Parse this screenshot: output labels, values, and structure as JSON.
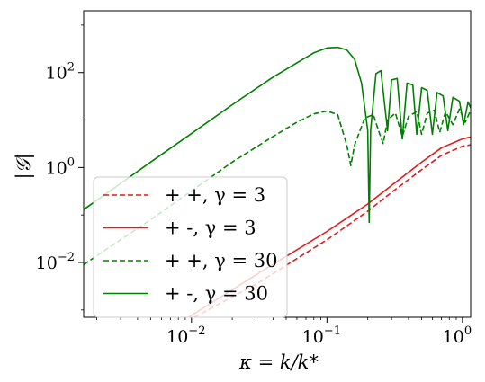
{
  "chart_data": {
    "type": "line",
    "title": "",
    "xlabel": "κ = k/k*",
    "ylabel": "|𝒢|",
    "xscale": "log",
    "yscale": "log",
    "xlim": [
      0.0016,
      1.15
    ],
    "ylim": [
      0.0007,
      2000
    ],
    "grid": false,
    "legend_location": "lower-left",
    "x_ticks": [
      {
        "value": 0.01,
        "base": "10",
        "exp": "−2"
      },
      {
        "value": 0.1,
        "base": "10",
        "exp": "−1"
      },
      {
        "value": 1,
        "base": "10",
        "exp": "0"
      }
    ],
    "y_ticks": [
      {
        "value": 0.01,
        "base": "10",
        "exp": "−2"
      },
      {
        "value": 1,
        "base": "10",
        "exp": "0"
      },
      {
        "value": 100,
        "base": "10",
        "exp": "2"
      }
    ],
    "series": [
      {
        "name": "+ +, γ = 3",
        "color": "#e31a1c",
        "dash": "dashed",
        "points": [
          [
            0.0105,
            0.0007
          ],
          [
            0.03,
            0.0035
          ],
          [
            0.1,
            0.03
          ],
          [
            0.2,
            0.12
          ],
          [
            0.3,
            0.3
          ],
          [
            0.5,
            0.9
          ],
          [
            0.7,
            1.8
          ],
          [
            1.0,
            2.8
          ],
          [
            1.15,
            3.0
          ]
        ]
      },
      {
        "name": "+ -, γ = 3",
        "color": "#e31a1c",
        "dash": "solid",
        "points": [
          [
            0.0095,
            0.0007
          ],
          [
            0.03,
            0.0055
          ],
          [
            0.1,
            0.045
          ],
          [
            0.2,
            0.17
          ],
          [
            0.3,
            0.42
          ],
          [
            0.5,
            1.3
          ],
          [
            0.7,
            2.6
          ],
          [
            1.0,
            4.0
          ],
          [
            1.15,
            4.4
          ]
        ]
      },
      {
        "name": "+ +, γ = 30",
        "color": "#008000",
        "dash": "dashed",
        "points": [
          [
            0.0016,
            0.009
          ],
          [
            0.005,
            0.08
          ],
          [
            0.01,
            0.32
          ],
          [
            0.02,
            1.3
          ],
          [
            0.04,
            4.5
          ],
          [
            0.06,
            9.0
          ],
          [
            0.08,
            13.5
          ],
          [
            0.1,
            15.5
          ],
          [
            0.12,
            13.0
          ],
          [
            0.14,
            3.0
          ],
          [
            0.15,
            1.1
          ],
          [
            0.16,
            3.0
          ],
          [
            0.19,
            11.0
          ],
          [
            0.22,
            13.0
          ],
          [
            0.24,
            6.0
          ],
          [
            0.26,
            3.2
          ],
          [
            0.28,
            10.0
          ],
          [
            0.32,
            14.0
          ],
          [
            0.36,
            4.5
          ],
          [
            0.4,
            12.0
          ],
          [
            0.46,
            15.0
          ],
          [
            0.5,
            5.0
          ],
          [
            0.55,
            14.0
          ],
          [
            0.62,
            16.0
          ],
          [
            0.68,
            5.5
          ],
          [
            0.75,
            15.0
          ],
          [
            0.85,
            8.0
          ],
          [
            0.95,
            17.0
          ],
          [
            1.05,
            9.0
          ],
          [
            1.15,
            16.0
          ]
        ]
      },
      {
        "name": "+ -, γ = 30",
        "color": "#008000",
        "dash": "solid",
        "points": [
          [
            0.0016,
            0.13
          ],
          [
            0.005,
            1.3
          ],
          [
            0.01,
            5.2
          ],
          [
            0.02,
            21.0
          ],
          [
            0.04,
            80.0
          ],
          [
            0.06,
            160.0
          ],
          [
            0.08,
            260.0
          ],
          [
            0.1,
            330.0
          ],
          [
            0.12,
            340.0
          ],
          [
            0.14,
            300.0
          ],
          [
            0.16,
            190.0
          ],
          [
            0.18,
            60.0
          ],
          [
            0.2,
            6.0
          ],
          [
            0.205,
            0.07
          ],
          [
            0.21,
            6.0
          ],
          [
            0.23,
            95.0
          ],
          [
            0.25,
            110.0
          ],
          [
            0.28,
            6.0
          ],
          [
            0.3,
            70.0
          ],
          [
            0.33,
            75.0
          ],
          [
            0.36,
            4.0
          ],
          [
            0.39,
            60.0
          ],
          [
            0.43,
            55.0
          ],
          [
            0.46,
            5.0
          ],
          [
            0.5,
            48.0
          ],
          [
            0.55,
            42.0
          ],
          [
            0.6,
            5.0
          ],
          [
            0.65,
            38.0
          ],
          [
            0.72,
            32.0
          ],
          [
            0.78,
            6.0
          ],
          [
            0.85,
            30.0
          ],
          [
            0.95,
            25.0
          ],
          [
            1.02,
            8.0
          ],
          [
            1.1,
            24.0
          ],
          [
            1.15,
            18.0
          ]
        ]
      }
    ]
  }
}
